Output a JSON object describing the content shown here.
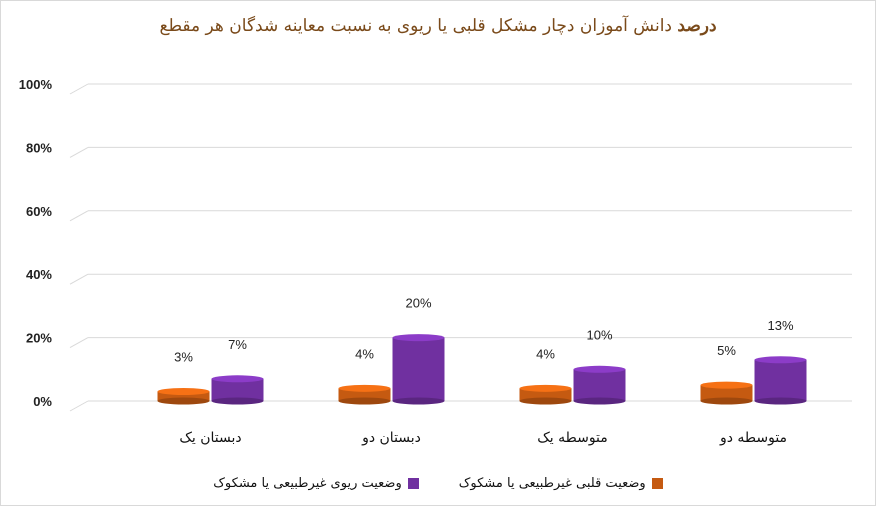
{
  "title": {
    "bold_part": "درصد",
    "rest": "دانش آموزان دچار مشکل قلبی یا ریوی به نسبت معاینه شدگان هر مقطع"
  },
  "chart_data": {
    "type": "bar",
    "categories": [
      "دبستان یک",
      "دبستان دو",
      "متوسطه یک",
      "متوسطه دو"
    ],
    "series": [
      {
        "name": "وضعیت قلبی غیرطبیعی یا مشکوک",
        "color": "#c55a11",
        "values": [
          3,
          4,
          4,
          5
        ],
        "labels": [
          "3%",
          "4%",
          "4%",
          "5%"
        ]
      },
      {
        "name": "وضعیت ریوی غیرطبیعی یا مشکوک",
        "color": "#7030a0",
        "values": [
          7,
          20,
          10,
          13
        ],
        "labels": [
          "7%",
          "20%",
          "10%",
          "13%"
        ]
      }
    ],
    "yticks": [
      "0%",
      "20%",
      "40%",
      "60%",
      "80%",
      "100%"
    ],
    "ylim": [
      0,
      100
    ],
    "grid": true,
    "legend_position": "bottom"
  }
}
